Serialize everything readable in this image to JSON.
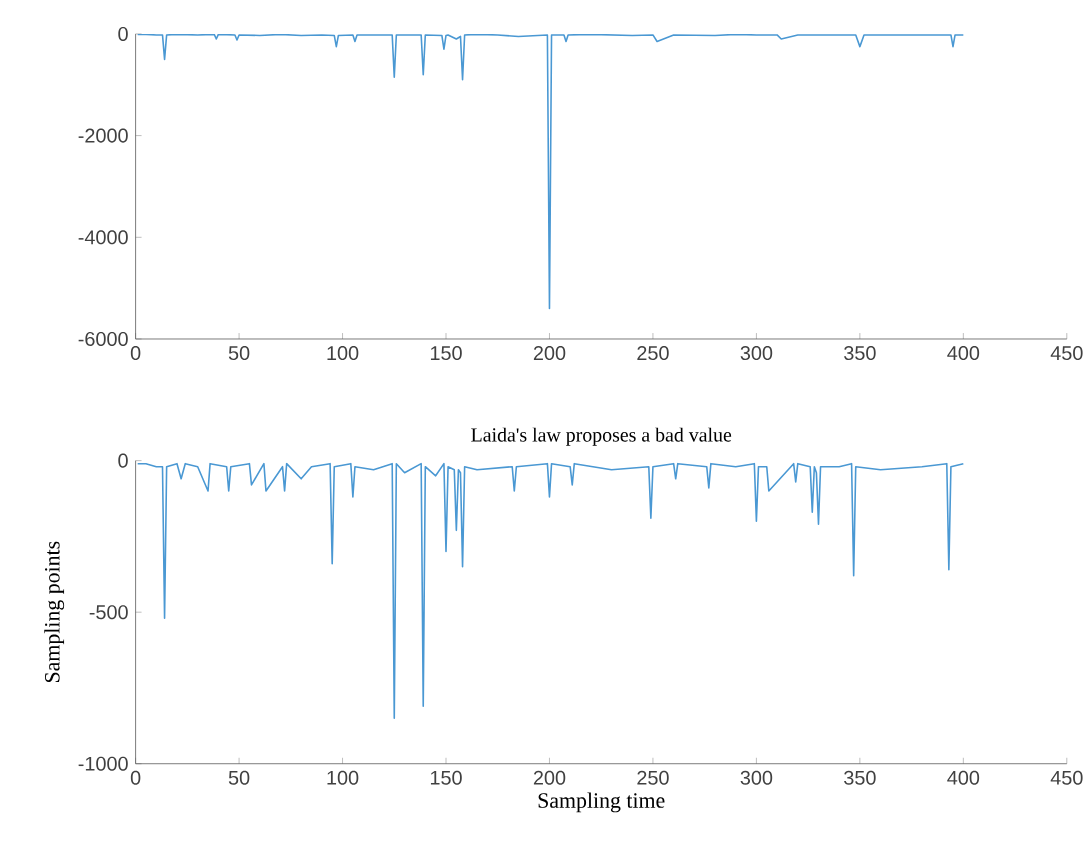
{
  "chart_data": [
    {
      "type": "line",
      "xlim": [
        0,
        450
      ],
      "xticks": [
        0,
        50,
        100,
        150,
        200,
        250,
        300,
        350,
        400,
        450
      ],
      "ylim": [
        -6000,
        0
      ],
      "yticks": [
        -6000,
        -4000,
        -2000,
        0
      ],
      "grid": false,
      "marker": "none",
      "line_style": "solid",
      "series": [
        {
          "color": "#4a98d3",
          "x": [
            1,
            5,
            10,
            13,
            14,
            15,
            20,
            30,
            38,
            39,
            40,
            48,
            49,
            50,
            60,
            70,
            80,
            90,
            96,
            97,
            98,
            105,
            106,
            107,
            115,
            124,
            125,
            126,
            135,
            138,
            139,
            140,
            148,
            149,
            150,
            151,
            155,
            157,
            158,
            159,
            165,
            175,
            185,
            199,
            200,
            201,
            207,
            208,
            209,
            220,
            240,
            250,
            252,
            260,
            280,
            290,
            300,
            310,
            312,
            320,
            340,
            348,
            350,
            352,
            370,
            390,
            394,
            395,
            396,
            400
          ],
          "values": [
            -10,
            -10,
            -20,
            -20,
            -500,
            -20,
            -10,
            -20,
            -10,
            -100,
            -10,
            -20,
            -120,
            -20,
            -30,
            -10,
            -30,
            -20,
            -30,
            -250,
            -30,
            -20,
            -150,
            -20,
            -20,
            -20,
            -850,
            -20,
            -20,
            -20,
            -800,
            -20,
            -30,
            -300,
            -30,
            -20,
            -100,
            -50,
            -900,
            -20,
            -10,
            -20,
            -50,
            -20,
            -5400,
            -20,
            -20,
            -150,
            -20,
            -10,
            -30,
            -20,
            -150,
            -20,
            -30,
            -10,
            -20,
            -20,
            -100,
            -20,
            -20,
            -20,
            -250,
            -20,
            -20,
            -20,
            -20,
            -250,
            -20,
            -20
          ]
        }
      ]
    },
    {
      "type": "line",
      "title": "Laida's law proposes a bad value",
      "xlabel": "Sampling time",
      "ylabel": "Sampling points",
      "xlim": [
        0,
        450
      ],
      "xticks": [
        0,
        50,
        100,
        150,
        200,
        250,
        300,
        350,
        400,
        450
      ],
      "ylim": [
        -1000,
        0
      ],
      "yticks": [
        -1000,
        -500,
        0
      ],
      "grid": false,
      "marker": "none",
      "line_style": "solid",
      "series": [
        {
          "color": "#4a98d3",
          "x": [
            1,
            5,
            10,
            13,
            14,
            15,
            20,
            22,
            24,
            30,
            35,
            36,
            44,
            45,
            46,
            55,
            56,
            62,
            63,
            71,
            72,
            73,
            80,
            85,
            94,
            95,
            96,
            104,
            105,
            106,
            115,
            124,
            125,
            126,
            130,
            138,
            139,
            140,
            145,
            149,
            150,
            151,
            154,
            155,
            156,
            157,
            158,
            159,
            165,
            182,
            183,
            184,
            199,
            200,
            201,
            210,
            211,
            212,
            230,
            248,
            249,
            250,
            260,
            261,
            262,
            276,
            277,
            278,
            290,
            299,
            300,
            301,
            305,
            306,
            318,
            319,
            320,
            326,
            327,
            328,
            329,
            330,
            331,
            340,
            346,
            347,
            348,
            360,
            380,
            392,
            393,
            394,
            400
          ],
          "values": [
            -10,
            -10,
            -20,
            -20,
            -520,
            -20,
            -10,
            -60,
            -10,
            -20,
            -100,
            -10,
            -20,
            -100,
            -20,
            -10,
            -80,
            -10,
            -100,
            -20,
            -100,
            -10,
            -60,
            -20,
            -10,
            -340,
            -20,
            -10,
            -120,
            -20,
            -30,
            -10,
            -850,
            -10,
            -40,
            -10,
            -810,
            -20,
            -50,
            -10,
            -300,
            -20,
            -30,
            -230,
            -30,
            -40,
            -350,
            -20,
            -30,
            -20,
            -100,
            -20,
            -10,
            -120,
            -10,
            -20,
            -80,
            -10,
            -30,
            -20,
            -190,
            -20,
            -10,
            -60,
            -10,
            -20,
            -90,
            -10,
            -20,
            -10,
            -200,
            -20,
            -20,
            -100,
            -10,
            -70,
            -10,
            -20,
            -170,
            -20,
            -40,
            -210,
            -20,
            -20,
            -10,
            -380,
            -20,
            -30,
            -20,
            -10,
            -360,
            -20,
            -10
          ]
        }
      ]
    }
  ]
}
